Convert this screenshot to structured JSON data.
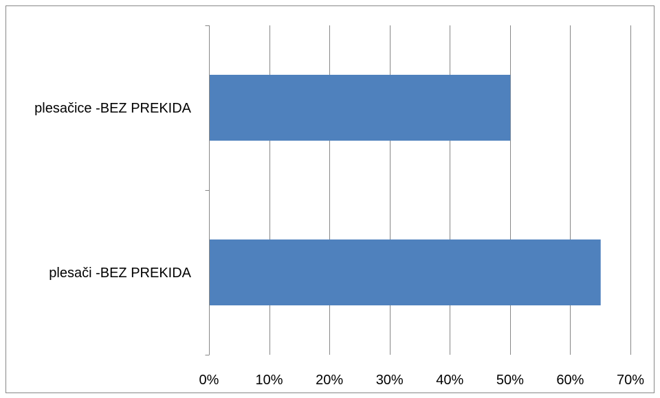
{
  "chart_data": {
    "type": "bar",
    "orientation": "horizontal",
    "categories": [
      "plesačice -BEZ PREKIDA",
      "plesači -BEZ PREKIDA"
    ],
    "values": [
      0.5,
      0.65
    ],
    "xlim": [
      0,
      0.7
    ],
    "x_ticks": [
      0,
      0.1,
      0.2,
      0.3,
      0.4,
      0.5,
      0.6,
      0.7
    ],
    "x_tick_labels": [
      "0%",
      "10%",
      "20%",
      "30%",
      "40%",
      "50%",
      "60%",
      "70%"
    ],
    "title": "",
    "xlabel": "",
    "ylabel": "",
    "grid": "vertical major gridlines",
    "legend": "none",
    "colors": {
      "bar": "#4F81BD",
      "grid": "#868686",
      "axis": "#868686",
      "border": "#868686"
    }
  }
}
